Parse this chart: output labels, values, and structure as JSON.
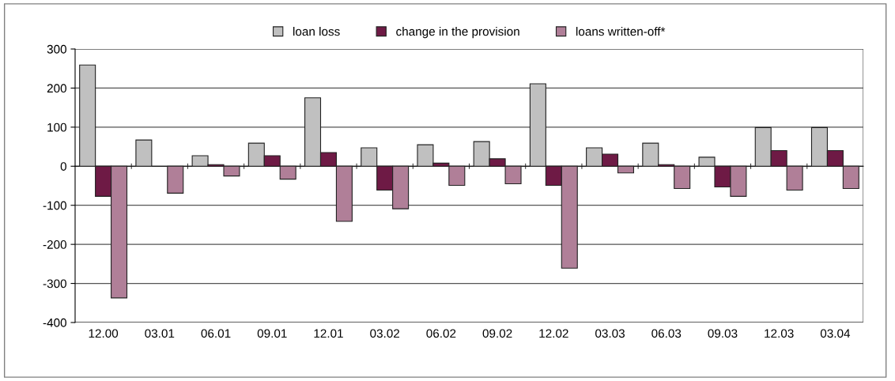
{
  "chart_data": {
    "type": "bar",
    "categories": [
      "12.00",
      "03.01",
      "06.01",
      "09.01",
      "12.01",
      "03.02",
      "06.02",
      "09.02",
      "12.02",
      "03.03",
      "06.03",
      "09.03",
      "12.03",
      "03.04"
    ],
    "series": [
      {
        "name": "loan loss",
        "color": "#c0c0c0",
        "values": [
          259,
          67,
          27,
          59,
          175,
          47,
          55,
          63,
          211,
          47,
          59,
          23,
          99,
          99
        ]
      },
      {
        "name": "change in the provision",
        "color": "#6e1a45",
        "values": [
          -77,
          null,
          4,
          27,
          35,
          -61,
          8,
          19,
          -49,
          31,
          4,
          -53,
          40,
          40
        ]
      },
      {
        "name": "loans written-off*",
        "color": "#b07f98",
        "values": [
          -337,
          -69,
          -25,
          -33,
          -141,
          -109,
          -49,
          -45,
          -261,
          -17,
          -57,
          -77,
          -61,
          -57
        ]
      }
    ],
    "ylim": [
      -400,
      300
    ],
    "yticks": [
      -400,
      -300,
      -200,
      -100,
      0,
      100,
      200,
      300
    ],
    "grid": "y",
    "legend": "top"
  }
}
